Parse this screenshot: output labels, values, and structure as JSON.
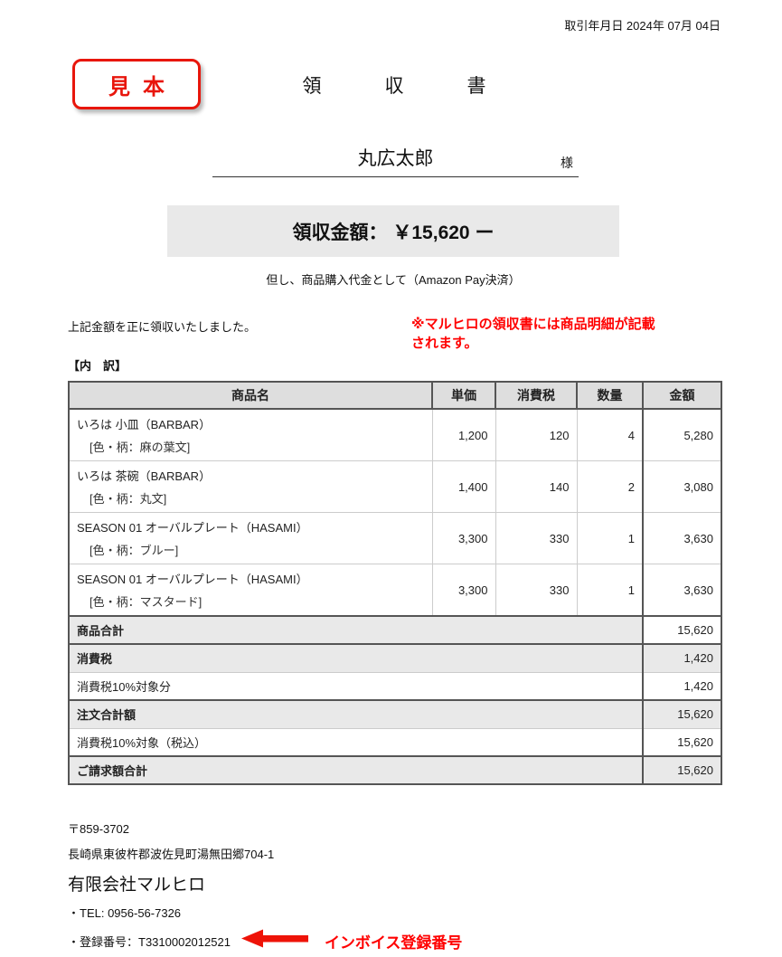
{
  "colors": {
    "accent_red": "#e8160c",
    "text_red": "#ff0000",
    "table_border_dark": "#555555",
    "table_border_light": "#cccccc",
    "gray_bg": "#e9e9e9",
    "header_bg": "#dedede"
  },
  "meta": {
    "date_line": "取引年月日 2024年 07月 04日"
  },
  "stamp": {
    "label": "見本"
  },
  "title": "領収書",
  "recipient": {
    "name": "丸広太郎",
    "honorific": "様"
  },
  "amount": {
    "label": "領収金額： ￥15,620 ー",
    "note": "但し、商品購入代金として（Amazon Pay決済）"
  },
  "statement": "上記金額を正に領収いたしました。",
  "red_note": {
    "line1": "※マルヒロの領収書には商品明細が記載",
    "line2": "されます。"
  },
  "breakdown_label": "【内　訳】",
  "table": {
    "headers": [
      "商品名",
      "単価",
      "消費税",
      "数量",
      "金額"
    ],
    "items": [
      {
        "name": "いろは 小皿（BARBAR）",
        "variant": "[色・柄：麻の葉文]",
        "unit_price": "1,200",
        "tax": "120",
        "qty": "4",
        "amount": "5,280"
      },
      {
        "name": "いろは 茶碗（BARBAR）",
        "variant": "[色・柄：丸文]",
        "unit_price": "1,400",
        "tax": "140",
        "qty": "2",
        "amount": "3,080"
      },
      {
        "name": "SEASON 01 オーバルプレート（HASAMI）",
        "variant": "[色・柄：ブルー]",
        "unit_price": "3,300",
        "tax": "330",
        "qty": "1",
        "amount": "3,630"
      },
      {
        "name": "SEASON 01 オーバルプレート（HASAMI）",
        "variant": "[色・柄：マスタード]",
        "unit_price": "3,300",
        "tax": "330",
        "qty": "1",
        "amount": "3,630"
      }
    ],
    "summary": [
      {
        "label": "商品合計",
        "value": "15,620",
        "bold": true,
        "label_gray": true,
        "value_gray": false,
        "group_start": true
      },
      {
        "label": "消費税",
        "value": "1,420",
        "bold": true,
        "label_gray": true,
        "value_gray": true,
        "group_start": true
      },
      {
        "label": "消費税10%対象分",
        "value": "1,420",
        "bold": false,
        "label_gray": false,
        "value_gray": false,
        "group_start": false
      },
      {
        "label": "注文合計額",
        "value": "15,620",
        "bold": true,
        "label_gray": true,
        "value_gray": true,
        "group_start": true
      },
      {
        "label": "消費税10%対象（税込）",
        "value": "15,620",
        "bold": false,
        "label_gray": false,
        "value_gray": false,
        "group_start": false
      },
      {
        "label": "ご請求額合計",
        "value": "15,620",
        "bold": true,
        "label_gray": true,
        "value_gray": true,
        "group_start": true
      }
    ]
  },
  "footer": {
    "postal": "〒859-3702",
    "address": "長崎県東彼杵郡波佐見町湯無田郷704-1",
    "company": "有限会社マルヒロ",
    "tel": "・TEL: 0956-56-7326",
    "registration": "・登録番号：T3310002012521",
    "invoice_label": "インボイス登録番号"
  }
}
